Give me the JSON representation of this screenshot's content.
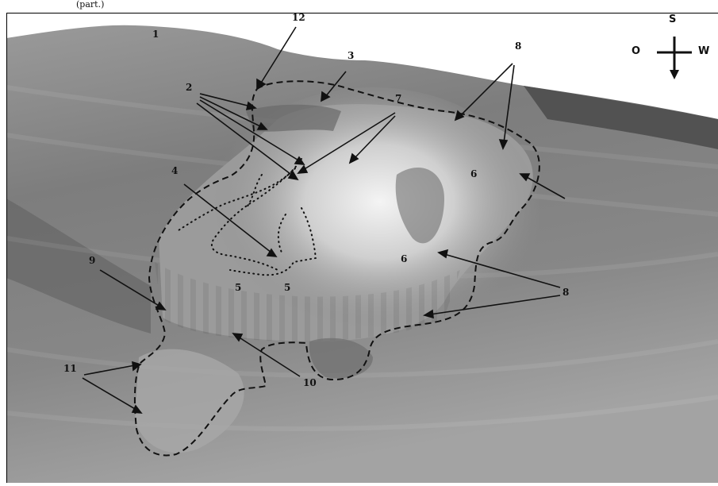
{
  "caption_fragment": "(part.)",
  "compass": {
    "north_label": "S",
    "west_label": "O",
    "east_label": "W",
    "icon": "compass-cross-arrow-icon"
  },
  "labels": {
    "l1": "1",
    "l2": "2",
    "l3": "3",
    "l4": "4",
    "l5a": "5",
    "l5b": "5",
    "l6a": "6",
    "l6b": "6",
    "l7": "7",
    "l8a": "8",
    "l8b": "8",
    "l9": "9",
    "l10": "10",
    "l11": "11",
    "l12": "12"
  },
  "colors": {
    "terrain_dark": "#6e6e6e",
    "terrain_mid": "#8f8f8f",
    "terrain_light": "#d8d8d8",
    "outline": "#111111"
  }
}
